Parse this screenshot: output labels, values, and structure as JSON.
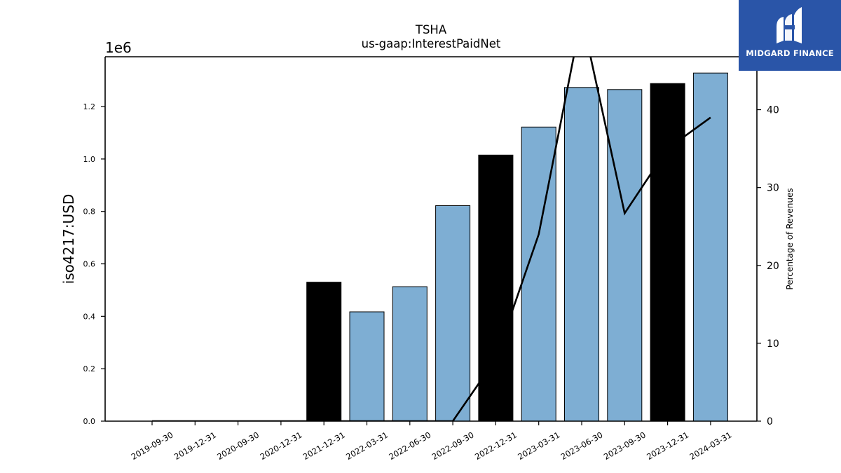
{
  "chart_data": {
    "type": "bar",
    "title": "TSHA",
    "subtitle": "us-gaap:InterestPaidNet",
    "ylabel": "iso4217:USD",
    "y2label": "Percentage of Revenues",
    "y_offset_label": "1e6",
    "categories": [
      "2019-09-30",
      "2019-12-31",
      "2020-09-30",
      "2020-12-31",
      "2021-12-31",
      "2022-03-31",
      "2022-06-30",
      "2022-09-30",
      "2022-12-31",
      "2023-03-31",
      "2023-06-30",
      "2023-09-30",
      "2023-12-31",
      "2024-03-31"
    ],
    "values": [
      0,
      0,
      0,
      0,
      530000,
      417000,
      513000,
      822000,
      1015000,
      1122000,
      1273000,
      1265000,
      1288000,
      1328000
    ],
    "bar_colors": [
      "#7eaed3",
      "#7eaed3",
      "#7eaed3",
      "#7eaed3",
      "#000000",
      "#7eaed3",
      "#7eaed3",
      "#7eaed3",
      "#000000",
      "#7eaed3",
      "#7eaed3",
      "#7eaed3",
      "#000000",
      "#7eaed3"
    ],
    "line_series": {
      "name": "Percentage of Revenues",
      "values": [
        0,
        0,
        0,
        0,
        0,
        0,
        0,
        0,
        8,
        24,
        52,
        26.7,
        35,
        39
      ]
    },
    "ylim": [
      0,
      1390000
    ],
    "y2lim": [
      0,
      46.8
    ],
    "yticks": [
      "0.0",
      "0.2",
      "0.4",
      "0.6",
      "0.8",
      "1.0",
      "1.2"
    ],
    "y2ticks": [
      "0",
      "10",
      "20",
      "30",
      "40"
    ],
    "grid": false
  },
  "logo": {
    "text": "MIDGARD FINANCE"
  }
}
